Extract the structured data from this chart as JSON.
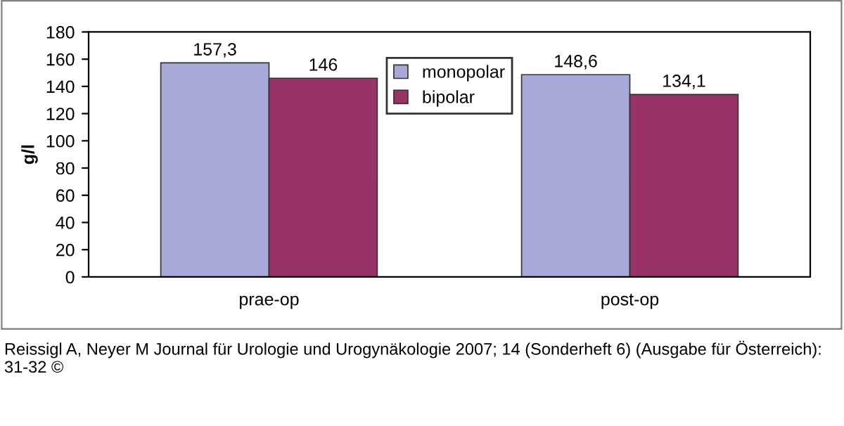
{
  "chart_data": {
    "type": "bar",
    "ylabel": "g/l",
    "categories": [
      "prae-op",
      "post-op"
    ],
    "series": [
      {
        "name": "monopolar",
        "color": "#a9a9d9",
        "values": [
          157.3,
          148.6
        ],
        "value_labels": [
          "157,3",
          "148,6"
        ]
      },
      {
        "name": "bipolar",
        "color": "#993366",
        "values": [
          146,
          134.1
        ],
        "value_labels": [
          "146",
          "134,1"
        ]
      }
    ],
    "ylim": [
      0,
      180
    ],
    "yticks": [
      0,
      20,
      40,
      60,
      80,
      100,
      120,
      140,
      160,
      180
    ],
    "grid": false,
    "legend": "top",
    "annotations": [
      "Reissigl A, Neyer M Journal für Urologie und Urogynäkologie 2007; 14 (Sonderheft 6) (Ausgabe für Österreich): 31-32 ©"
    ]
  }
}
